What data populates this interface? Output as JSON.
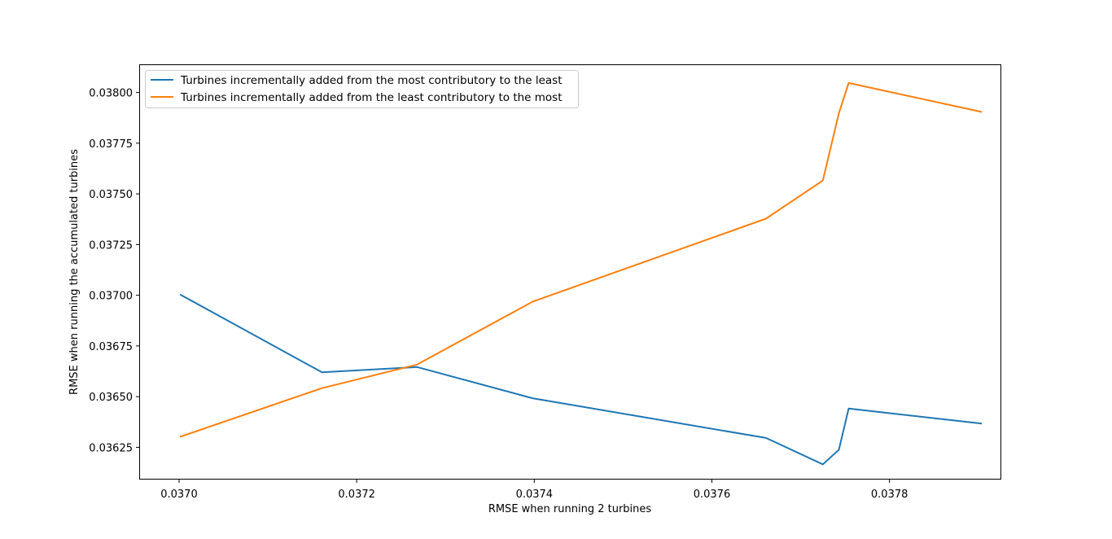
{
  "chart_data": {
    "type": "line",
    "xlabel": "RMSE when running 2 turbines",
    "ylabel": "RMSE when running the accumulated turbines",
    "xlim": [
      0.036956,
      0.037925
    ],
    "ylim": [
      0.036095,
      0.038135
    ],
    "xticks": [
      0.037,
      0.0372,
      0.0374,
      0.0376,
      0.0378
    ],
    "xtick_labels": [
      "0.0370",
      "0.0372",
      "0.0374",
      "0.0376",
      "0.0378"
    ],
    "yticks": [
      0.03625,
      0.0365,
      0.03675,
      0.037,
      0.03725,
      0.0375,
      0.03775,
      0.038
    ],
    "ytick_labels": [
      "0.03625",
      "0.03650",
      "0.03675",
      "0.03700",
      "0.03725",
      "0.03750",
      "0.03775",
      "0.03800"
    ],
    "grid": false,
    "legend_position": "top-left",
    "series": [
      {
        "name": "Turbines incrementally added from the most contributory to the least",
        "color": "#1f77b4",
        "x": [
          0.037001,
          0.037161,
          0.037268,
          0.037398,
          0.037661,
          0.037725,
          0.037743,
          0.037754,
          0.037904
        ],
        "y": [
          0.037004,
          0.03662,
          0.036646,
          0.036492,
          0.036296,
          0.036166,
          0.036238,
          0.036441,
          0.036367
        ]
      },
      {
        "name": "Turbines incrementally added from the least contributory to the most",
        "color": "#ff7f0e",
        "x": [
          0.037001,
          0.037161,
          0.037268,
          0.037398,
          0.037661,
          0.037725,
          0.037743,
          0.037754,
          0.037904
        ],
        "y": [
          0.036302,
          0.036542,
          0.036658,
          0.036968,
          0.037378,
          0.037566,
          0.037898,
          0.038047,
          0.037904
        ]
      }
    ]
  }
}
